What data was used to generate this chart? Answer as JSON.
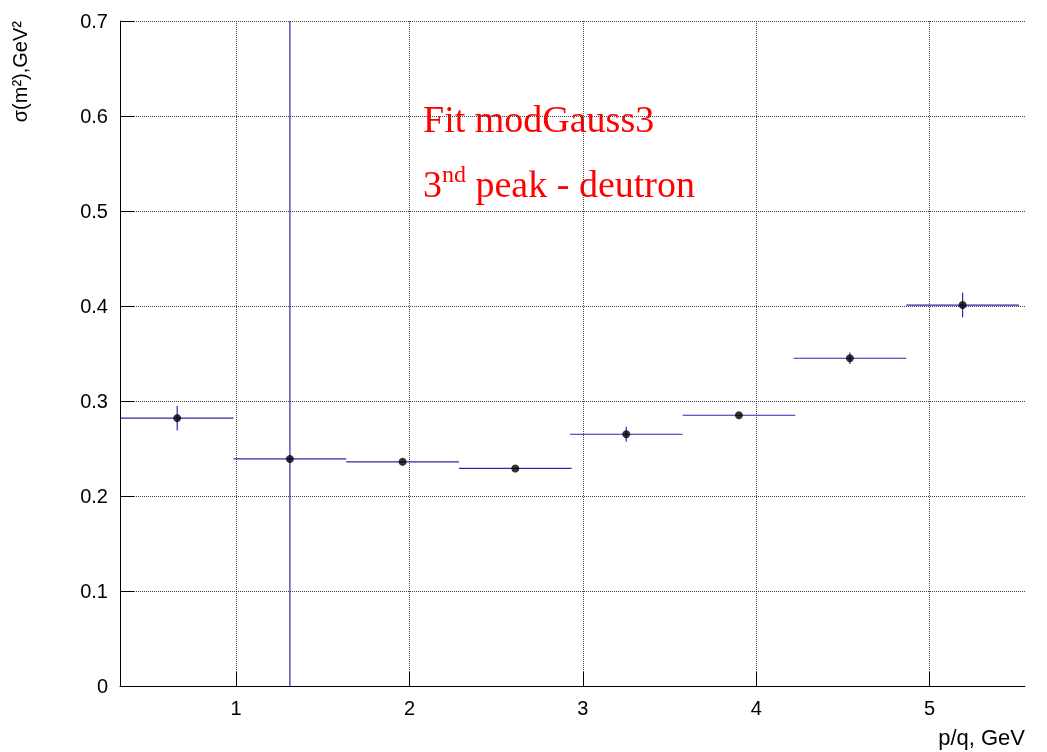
{
  "chart_data": {
    "type": "scatter",
    "x": [
      0.66,
      1.31,
      1.96,
      2.61,
      3.25,
      3.9,
      4.54,
      5.19
    ],
    "series": [
      {
        "color": "#000000",
        "values": [
          0.282,
          0.239,
          0.236,
          0.229,
          0.265,
          0.285,
          0.345,
          0.401
        ],
        "errors": [
          0.013,
          [
            0,
            0.7
          ],
          null,
          null,
          0.008,
          null,
          0.006,
          0.013
        ],
        "xerrors": [
          0.325,
          0.325,
          0.325,
          0.325,
          0.325,
          0.325,
          0.325,
          0.325
        ]
      }
    ],
    "xlim": [
      0.33,
      5.55
    ],
    "xticks": [
      1,
      2,
      3,
      4,
      5
    ],
    "ylim": [
      0,
      0.7
    ],
    "yticks": [
      0,
      0.1,
      0.2,
      0.3,
      0.4,
      0.5,
      0.6,
      0.7
    ],
    "xlabel": "p/q, GeV",
    "ylabel": "σ(m²),GeV²",
    "annotations": [
      "Fit modGauss3",
      "3$^{nd}$ peak - deutron"
    ],
    "grid": true,
    "marker": "circle"
  }
}
